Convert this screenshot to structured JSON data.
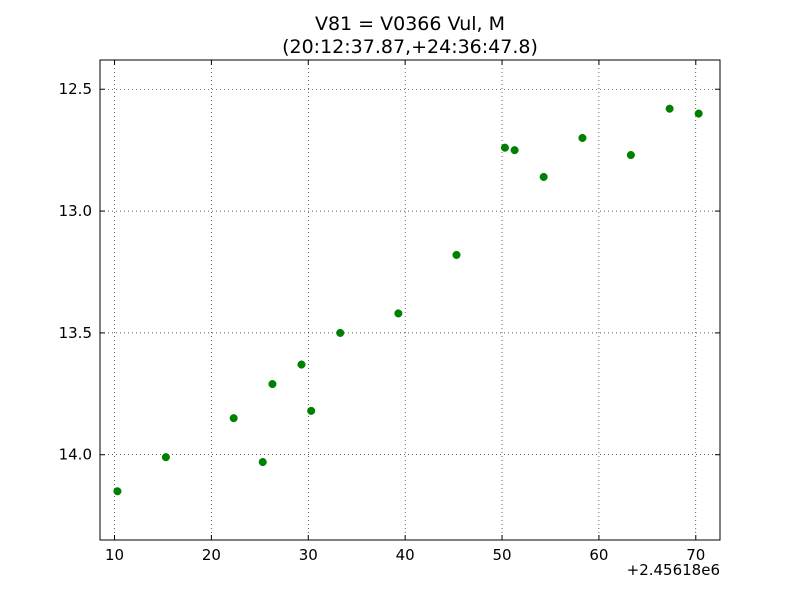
{
  "chart_data": {
    "type": "scatter",
    "title": "V81 = V0366 Vul, M",
    "subtitle": "(20:12:37.87,+24:36:47.8)",
    "xlabel": "",
    "ylabel": "",
    "x_offset_label": "+2.45618e6",
    "xlim": [
      8.5,
      72.5
    ],
    "ylim": [
      14.35,
      12.38
    ],
    "y_inverted": true,
    "grid": true,
    "x_ticks": [
      10,
      20,
      30,
      40,
      50,
      60,
      70
    ],
    "x_tick_labels": [
      "10",
      "20",
      "30",
      "40",
      "50",
      "60",
      "70"
    ],
    "y_ticks": [
      12.5,
      13.0,
      13.5,
      14.0
    ],
    "y_tick_labels": [
      "12.5",
      "13.0",
      "13.5",
      "14.0"
    ],
    "marker_color": "#008000",
    "points": [
      {
        "x": 10.3,
        "y": 14.15
      },
      {
        "x": 15.3,
        "y": 14.01
      },
      {
        "x": 22.3,
        "y": 13.85
      },
      {
        "x": 25.3,
        "y": 14.03
      },
      {
        "x": 26.3,
        "y": 13.71
      },
      {
        "x": 29.3,
        "y": 13.63
      },
      {
        "x": 30.3,
        "y": 13.82
      },
      {
        "x": 33.3,
        "y": 13.5
      },
      {
        "x": 39.3,
        "y": 13.42
      },
      {
        "x": 45.3,
        "y": 13.18
      },
      {
        "x": 50.3,
        "y": 12.74
      },
      {
        "x": 51.3,
        "y": 12.75
      },
      {
        "x": 54.3,
        "y": 12.86
      },
      {
        "x": 58.3,
        "y": 12.7
      },
      {
        "x": 63.3,
        "y": 12.77
      },
      {
        "x": 67.3,
        "y": 12.58
      },
      {
        "x": 70.3,
        "y": 12.6
      }
    ]
  }
}
